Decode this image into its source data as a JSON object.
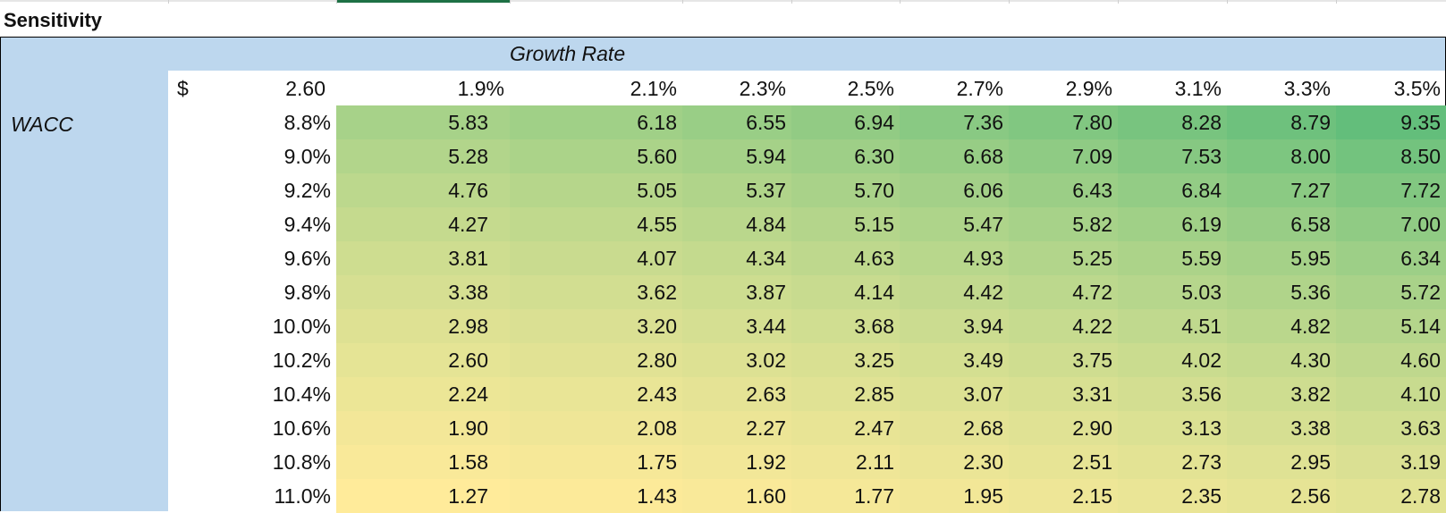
{
  "title": "Sensitivity",
  "column_header_title": "Growth Rate",
  "row_header_title": "WACC",
  "base_currency": "$",
  "base_value": "2.60",
  "growth_rates": [
    "1.9%",
    "2.1%",
    "2.3%",
    "2.5%",
    "2.7%",
    "2.9%",
    "3.1%",
    "3.3%",
    "3.5%"
  ],
  "wacc_rates": [
    "8.8%",
    "9.0%",
    "9.2%",
    "9.4%",
    "9.6%",
    "9.8%",
    "10.0%",
    "10.2%",
    "10.4%",
    "10.6%",
    "10.8%",
    "11.0%"
  ],
  "values": [
    [
      "5.83",
      "6.18",
      "6.55",
      "6.94",
      "7.36",
      "7.80",
      "8.28",
      "8.79",
      "9.35"
    ],
    [
      "5.28",
      "5.60",
      "5.94",
      "6.30",
      "6.68",
      "7.09",
      "7.53",
      "8.00",
      "8.50"
    ],
    [
      "4.76",
      "5.05",
      "5.37",
      "5.70",
      "6.06",
      "6.43",
      "6.84",
      "7.27",
      "7.72"
    ],
    [
      "4.27",
      "4.55",
      "4.84",
      "5.15",
      "5.47",
      "5.82",
      "6.19",
      "6.58",
      "7.00"
    ],
    [
      "3.81",
      "4.07",
      "4.34",
      "4.63",
      "4.93",
      "5.25",
      "5.59",
      "5.95",
      "6.34"
    ],
    [
      "3.38",
      "3.62",
      "3.87",
      "4.14",
      "4.42",
      "4.72",
      "5.03",
      "5.36",
      "5.72"
    ],
    [
      "2.98",
      "3.20",
      "3.44",
      "3.68",
      "3.94",
      "4.22",
      "4.51",
      "4.82",
      "5.14"
    ],
    [
      "2.60",
      "2.80",
      "3.02",
      "3.25",
      "3.49",
      "3.75",
      "4.02",
      "4.30",
      "4.60"
    ],
    [
      "2.24",
      "2.43",
      "2.63",
      "2.85",
      "3.07",
      "3.31",
      "3.56",
      "3.82",
      "4.10"
    ],
    [
      "1.90",
      "2.08",
      "2.27",
      "2.47",
      "2.68",
      "2.90",
      "3.13",
      "3.38",
      "3.63"
    ],
    [
      "1.58",
      "1.75",
      "1.92",
      "2.11",
      "2.30",
      "2.51",
      "2.73",
      "2.95",
      "3.19"
    ],
    [
      "1.27",
      "1.43",
      "1.60",
      "1.77",
      "1.95",
      "2.15",
      "2.35",
      "2.56",
      "2.78"
    ]
  ],
  "colors": {
    "header_fill": "#bdd7ee",
    "scale_low": "#ffeb9a",
    "scale_high": "#63be7b",
    "selection": "#1e7145"
  }
}
